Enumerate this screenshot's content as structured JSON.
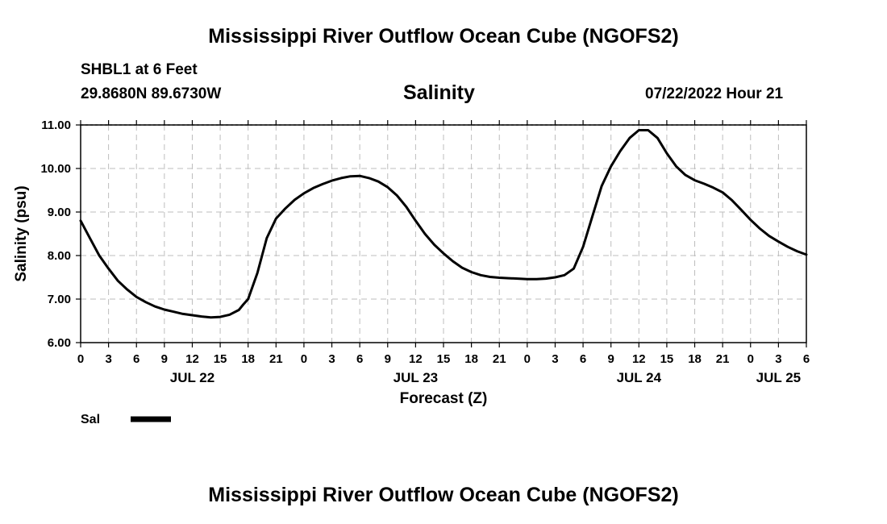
{
  "header": {
    "title": "Mississippi River Outflow Ocean Cube (NGOFS2)",
    "station": "SHBL1 at 6 Feet",
    "coords": "29.8680N  89.6730W",
    "param_title": "Salinity",
    "run_time": "07/22/2022 Hour 21"
  },
  "footer": {
    "title": "Mississippi River Outflow Ocean Cube (NGOFS2)"
  },
  "chart_data": {
    "type": "line",
    "title": "Salinity",
    "xlabel": "Forecast (Z)",
    "ylabel": "Salinity (psu)",
    "ylim": [
      6.0,
      11.0
    ],
    "xlim": [
      0,
      78
    ],
    "y_ticks": [
      "6.00",
      "7.00",
      "8.00",
      "9.00",
      "10.00",
      "11.00"
    ],
    "x_tick_hours": [
      0,
      3,
      6,
      9,
      12,
      15,
      18,
      21,
      24,
      27,
      30,
      33,
      36,
      39,
      42,
      45,
      48,
      51,
      54,
      57,
      60,
      63,
      66,
      69,
      72,
      75,
      78
    ],
    "x_tick_labels": [
      "0",
      "3",
      "6",
      "9",
      "12",
      "15",
      "18",
      "21",
      "0",
      "3",
      "6",
      "9",
      "12",
      "15",
      "18",
      "21",
      "0",
      "3",
      "6",
      "9",
      "12",
      "15",
      "18",
      "21",
      "0",
      "3",
      "6"
    ],
    "date_labels": [
      {
        "hour": 12,
        "label": "JUL 22"
      },
      {
        "hour": 36,
        "label": "JUL 23"
      },
      {
        "hour": 60,
        "label": "JUL 24"
      },
      {
        "hour": 75,
        "label": "JUL 25"
      }
    ],
    "grid": true,
    "legend": [
      {
        "name": "Sal",
        "color": "#000000"
      }
    ],
    "series": [
      {
        "name": "Sal",
        "x": [
          0,
          1,
          2,
          3,
          4,
          5,
          6,
          7,
          8,
          9,
          10,
          11,
          12,
          13,
          14,
          15,
          16,
          17,
          17.5,
          18,
          19,
          20,
          21,
          22,
          23,
          24,
          25,
          26,
          27,
          28,
          29,
          30,
          31,
          32,
          33,
          34,
          35,
          36,
          37,
          38,
          39,
          40,
          41,
          42,
          43,
          44,
          45,
          46,
          47,
          48,
          49,
          50,
          51,
          52,
          53,
          54,
          55,
          56,
          57,
          58,
          59,
          60,
          61,
          62,
          63,
          64,
          65,
          66,
          67,
          68,
          69,
          70,
          71,
          72,
          73,
          74,
          75,
          76,
          77,
          78
        ],
        "values": [
          8.8,
          8.4,
          8.0,
          7.7,
          7.42,
          7.22,
          7.05,
          6.93,
          6.83,
          6.76,
          6.71,
          6.66,
          6.63,
          6.6,
          6.58,
          6.59,
          6.64,
          6.75,
          6.88,
          7.0,
          7.6,
          8.4,
          8.85,
          9.08,
          9.28,
          9.43,
          9.55,
          9.64,
          9.72,
          9.78,
          9.82,
          9.83,
          9.78,
          9.7,
          9.57,
          9.38,
          9.12,
          8.8,
          8.5,
          8.25,
          8.05,
          7.87,
          7.72,
          7.62,
          7.55,
          7.51,
          7.49,
          7.48,
          7.47,
          7.46,
          7.46,
          7.47,
          7.5,
          7.55,
          7.7,
          8.2,
          8.9,
          9.6,
          10.05,
          10.4,
          10.7,
          10.88,
          10.88,
          10.7,
          10.35,
          10.05,
          9.85,
          9.73,
          9.65,
          9.56,
          9.45,
          9.27,
          9.05,
          8.82,
          8.62,
          8.45,
          8.32,
          8.2,
          8.1,
          8.02
        ]
      }
    ]
  }
}
